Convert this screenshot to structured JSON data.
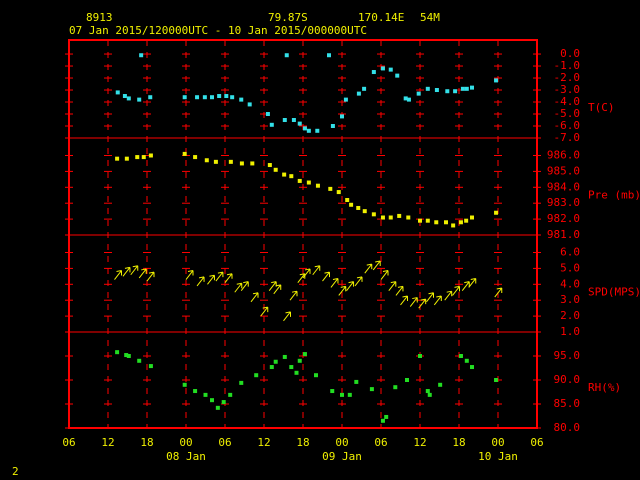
{
  "header": {
    "station": "8913",
    "lat": "79.87S",
    "lon": "170.14E",
    "elev": "54M",
    "period": "07 Jan 2015/120000UTC - 10 Jan 2015/000000UTC",
    "page": "2"
  },
  "x_axis": {
    "xlim": [
      0,
      72
    ],
    "xticks": [
      {
        "value": 0,
        "label": "06"
      },
      {
        "value": 6,
        "label": "12"
      },
      {
        "value": 12,
        "label": "18"
      },
      {
        "value": 18,
        "label": "00"
      },
      {
        "value": 24,
        "label": "06"
      },
      {
        "value": 30,
        "label": "12"
      },
      {
        "value": 36,
        "label": "18"
      },
      {
        "value": 42,
        "label": "00"
      },
      {
        "value": 48,
        "label": "06"
      },
      {
        "value": 54,
        "label": "12"
      },
      {
        "value": 60,
        "label": "18"
      },
      {
        "value": 66,
        "label": "00"
      },
      {
        "value": 72,
        "label": "06"
      }
    ],
    "day_labels": [
      {
        "value": 18,
        "label": "08 Jan"
      },
      {
        "value": 42,
        "label": "09 Jan"
      },
      {
        "value": 66,
        "label": "10 Jan"
      }
    ]
  },
  "chart_data": [
    {
      "type": "scatter",
      "marker": "square",
      "ylabel": "T(C)",
      "color": "#33e0e8",
      "ylim": [
        -7,
        1.17
      ],
      "yticks": [
        {
          "value": 0,
          "label": "0.0"
        },
        {
          "value": -1,
          "label": "-1.0"
        },
        {
          "value": -2,
          "label": "-2.0"
        },
        {
          "value": -3,
          "label": "-3.0"
        },
        {
          "value": -4,
          "label": "-4.0"
        },
        {
          "value": -5,
          "label": "-5.0"
        },
        {
          "value": -6,
          "label": "-6.0"
        },
        {
          "value": -7,
          "label": "-7.0"
        }
      ],
      "x": [
        7.5,
        8.6,
        9.2,
        10.8,
        12.5,
        11.1,
        17.8,
        19.7,
        20.9,
        22.0,
        23.1,
        24.2,
        25.1,
        26.5,
        27.8,
        30.6,
        31.2,
        33.2,
        34.6,
        35.5,
        36.3,
        36.9,
        38.2,
        33.5,
        40.0,
        40.6,
        42.0,
        42.6,
        44.6,
        45.4,
        46.9,
        48.3,
        49.5,
        50.5,
        51.8,
        52.3,
        53.8,
        55.2,
        56.6,
        58.2,
        59.4,
        60.6,
        61.2,
        62.0,
        65.7
      ],
      "values": [
        -3.2,
        -3.5,
        -3.7,
        -3.8,
        -3.6,
        -0.1,
        -3.6,
        -3.6,
        -3.6,
        -3.6,
        -3.5,
        -3.5,
        -3.6,
        -3.8,
        -4.2,
        -5.0,
        -5.9,
        -5.5,
        -5.5,
        -5.8,
        -6.2,
        -6.4,
        -6.4,
        -0.1,
        -0.1,
        -6.0,
        -5.2,
        -3.8,
        -3.3,
        -2.9,
        -1.5,
        -1.2,
        -1.3,
        -1.8,
        -3.7,
        -3.8,
        -3.3,
        -2.9,
        -3.0,
        -3.1,
        -3.1,
        -2.9,
        -2.9,
        -2.8,
        -2.2
      ]
    },
    {
      "type": "scatter",
      "marker": "square",
      "ylabel": "Pre (mb)",
      "color": "#f0f000",
      "ylim": [
        981,
        987.1
      ],
      "yticks": [
        {
          "value": 986,
          "label": "986.0"
        },
        {
          "value": 985,
          "label": "985.0"
        },
        {
          "value": 984,
          "label": "984.0"
        },
        {
          "value": 983,
          "label": "983.0"
        },
        {
          "value": 982,
          "label": "982.0"
        },
        {
          "value": 981,
          "label": "981.0"
        }
      ],
      "x": [
        7.4,
        8.9,
        10.5,
        11.5,
        12.6,
        17.8,
        19.4,
        21.2,
        22.6,
        24.9,
        26.6,
        28.2,
        30.9,
        31.8,
        33.1,
        34.2,
        35.5,
        36.9,
        38.3,
        40.2,
        41.5,
        42.8,
        43.4,
        44.5,
        45.5,
        46.9,
        48.3,
        49.5,
        50.8,
        52.2,
        54.0,
        55.2,
        56.5,
        58.0,
        59.1,
        60.3,
        61.1,
        62.0,
        65.7
      ],
      "values": [
        985.8,
        985.8,
        985.9,
        985.9,
        986.0,
        986.1,
        985.9,
        985.7,
        985.6,
        985.6,
        985.5,
        985.5,
        985.4,
        985.1,
        984.8,
        984.7,
        984.4,
        984.3,
        984.1,
        983.9,
        983.7,
        983.2,
        982.9,
        982.7,
        982.5,
        982.3,
        982.1,
        982.1,
        982.2,
        982.1,
        981.9,
        981.9,
        981.8,
        981.8,
        981.6,
        981.8,
        981.9,
        982.1,
        982.4
      ]
    },
    {
      "type": "scatter",
      "marker": "arrow",
      "ylabel": "SPD(MPS)",
      "color": "#f0f000",
      "ylim": [
        1,
        7.1
      ],
      "yticks": [
        {
          "value": 6,
          "label": "6.0"
        },
        {
          "value": 5,
          "label": "5.0"
        },
        {
          "value": 4,
          "label": "4.0"
        },
        {
          "value": 3,
          "label": "3.0"
        },
        {
          "value": 2,
          "label": "2.0"
        },
        {
          "value": 1,
          "label": "1.0"
        }
      ],
      "x": [
        7.0,
        8.3,
        9.5,
        10.8,
        12.0,
        18.0,
        19.7,
        21.3,
        22.6,
        24.0,
        25.5,
        26.5,
        28.0,
        29.5,
        30.8,
        31.5,
        33.0,
        34.0,
        35.2,
        36.0,
        37.5,
        39.0,
        40.3,
        41.5,
        42.7,
        44.0,
        45.5,
        46.8,
        48.0,
        49.2,
        50.3,
        51.0,
        52.5,
        53.8,
        55.0,
        56.2,
        57.8,
        59.0,
        60.5,
        61.5,
        65.5
      ],
      "values": [
        4.3,
        4.5,
        4.6,
        4.4,
        4.2,
        4.3,
        3.9,
        4.0,
        4.2,
        4.1,
        3.5,
        3.6,
        2.9,
        2.0,
        3.6,
        3.4,
        1.7,
        3.0,
        4.1,
        4.4,
        4.6,
        4.2,
        3.8,
        3.3,
        3.6,
        3.9,
        4.7,
        4.9,
        4.3,
        3.6,
        3.3,
        2.7,
        2.6,
        2.5,
        2.9,
        2.7,
        3.0,
        3.3,
        3.6,
        3.8,
        3.2
      ]
    },
    {
      "type": "scatter",
      "marker": "square",
      "ylabel": "RH(%)",
      "color": "#22dd22",
      "ylim": [
        80,
        100
      ],
      "yticks": [
        {
          "value": 95,
          "label": "95.0"
        },
        {
          "value": 90,
          "label": "90.0"
        },
        {
          "value": 85,
          "label": "85.0"
        },
        {
          "value": 80,
          "label": "80.0"
        }
      ],
      "x": [
        7.4,
        8.8,
        9.2,
        10.8,
        12.6,
        17.8,
        19.4,
        21.0,
        22.0,
        22.9,
        23.8,
        24.8,
        26.5,
        28.8,
        31.2,
        31.8,
        33.2,
        34.2,
        35.0,
        35.5,
        36.3,
        38.0,
        40.5,
        42.0,
        43.2,
        44.2,
        46.6,
        48.3,
        48.8,
        50.2,
        52.0,
        54.0,
        55.2,
        55.5,
        57.1,
        60.3,
        61.2,
        62.0,
        65.7
      ],
      "values": [
        95.8,
        95.2,
        95.0,
        94.0,
        92.9,
        89.0,
        87.7,
        86.9,
        85.8,
        84.2,
        85.4,
        86.9,
        89.4,
        91.0,
        92.7,
        93.8,
        94.8,
        92.7,
        91.5,
        94.0,
        95.4,
        91.0,
        87.7,
        86.9,
        86.9,
        89.6,
        88.1,
        81.5,
        82.3,
        88.5,
        90.0,
        95.0,
        87.7,
        86.9,
        89.0,
        95.0,
        94.0,
        92.7,
        90.0
      ]
    }
  ]
}
